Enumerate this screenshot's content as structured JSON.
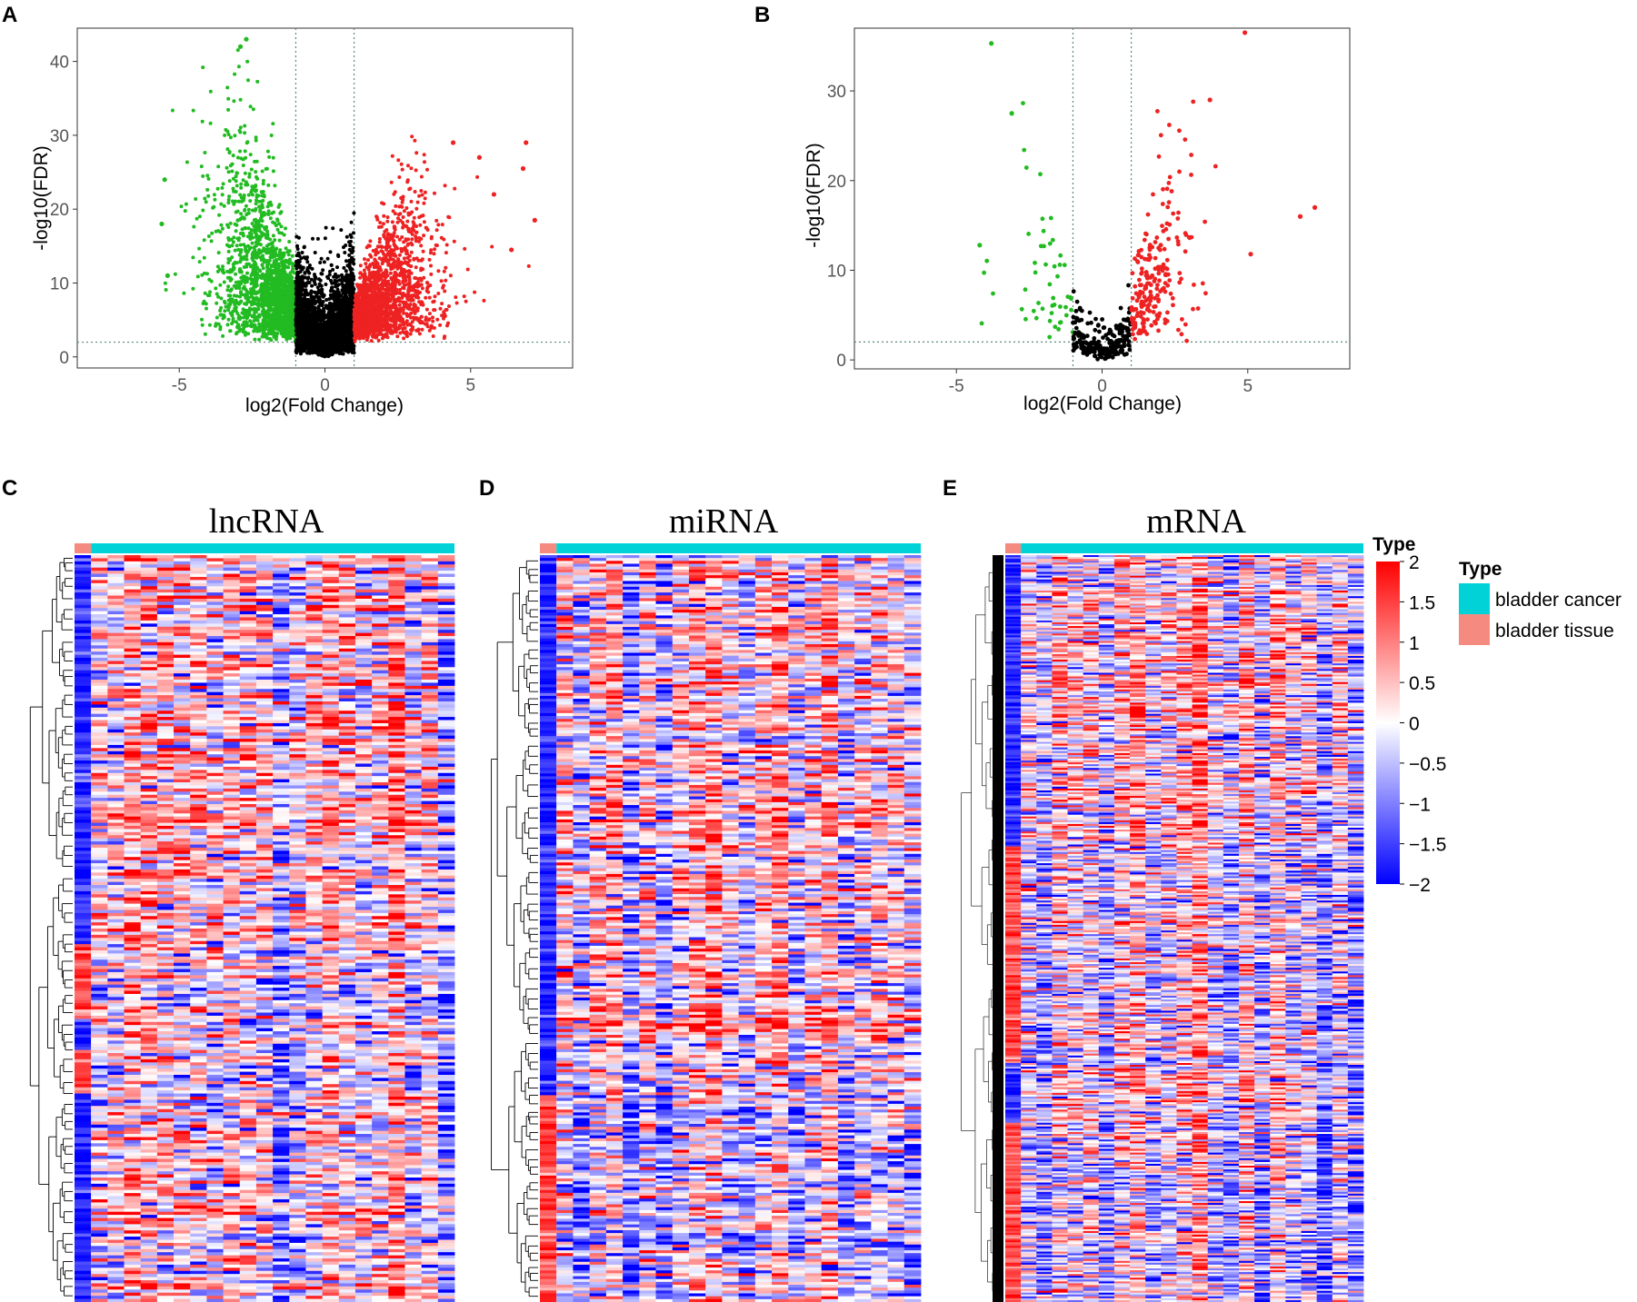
{
  "panels": {
    "A": "A",
    "B": "B",
    "C": "C",
    "D": "D",
    "E": "E"
  },
  "colors": {
    "up": "#ee2222",
    "down": "#22bb22",
    "ns": "#000000",
    "cancer": "#00d2d8",
    "tissue": "#f58a80",
    "heat_high": "#ff0000",
    "heat_mid": "#ffffff",
    "heat_low": "#0000ff"
  },
  "chart_data": [
    {
      "id": "A",
      "type": "scatter",
      "title": "",
      "xlabel": "log2(Fold Change)",
      "ylabel": "-log10(FDR)",
      "xlim": [
        -8.5,
        8.5
      ],
      "ylim": [
        -1.5,
        44.5
      ],
      "xticks": [
        -5,
        0,
        5
      ],
      "yticks": [
        0,
        10,
        20,
        30,
        40
      ],
      "fc_cutoffs": [
        -1,
        1
      ],
      "fdr_cutoff": 2,
      "series": [
        {
          "name": "down",
          "color": "#22bb22",
          "n": 1800,
          "x_range": [
            -5.5,
            -1
          ],
          "y_max": 43
        },
        {
          "name": "ns",
          "color": "#000000",
          "n": 2500,
          "x_range": [
            -1,
            1
          ],
          "y_max": 20
        },
        {
          "name": "up",
          "color": "#ee2222",
          "n": 1800,
          "x_range": [
            1,
            7.2
          ],
          "y_max": 30
        }
      ],
      "highlight_points": [
        {
          "x": -2.7,
          "y": 43
        },
        {
          "x": -2.9,
          "y": 42
        },
        {
          "x": 4.4,
          "y": 29
        },
        {
          "x": 6.9,
          "y": 29
        },
        {
          "x": 5.3,
          "y": 27
        },
        {
          "x": 6.8,
          "y": 25.5
        },
        {
          "x": 5.8,
          "y": 22
        },
        {
          "x": 7.2,
          "y": 18.5
        },
        {
          "x": 6.4,
          "y": 14.5
        },
        {
          "x": -5.5,
          "y": 24
        },
        {
          "x": -5.6,
          "y": 18
        },
        {
          "x": -5.4,
          "y": 11
        }
      ]
    },
    {
      "id": "B",
      "type": "scatter",
      "title": "",
      "xlabel": "log2(Fold Change)",
      "ylabel": "-log10(FDR)",
      "xlim": [
        -8.5,
        8.5
      ],
      "ylim": [
        -1,
        37
      ],
      "xticks": [
        -5,
        0,
        5
      ],
      "yticks": [
        0,
        10,
        20,
        30
      ],
      "fc_cutoffs": [
        -1,
        1
      ],
      "fdr_cutoff": 2,
      "series": [
        {
          "name": "down",
          "color": "#22bb22",
          "n": 50,
          "x_range": [
            -4.2,
            -1
          ],
          "y_max": 35.5
        },
        {
          "name": "ns",
          "color": "#000000",
          "n": 220,
          "x_range": [
            -1,
            1
          ],
          "y_max": 9
        },
        {
          "name": "up",
          "color": "#ee2222",
          "n": 220,
          "x_range": [
            1,
            7.3
          ],
          "y_max": 37
        }
      ],
      "highlight_points": [
        {
          "x": 4.9,
          "y": 36.5
        },
        {
          "x": -3.8,
          "y": 35.3
        },
        {
          "x": 3.7,
          "y": 29
        },
        {
          "x": -3.1,
          "y": 27.5
        },
        {
          "x": 7.3,
          "y": 17
        },
        {
          "x": 6.8,
          "y": 16
        },
        {
          "x": 5.1,
          "y": 11.8
        },
        {
          "x": -4.2,
          "y": 12.8
        }
      ]
    },
    {
      "id": "C",
      "type": "heatmap",
      "title": "lncRNA",
      "groups": [
        {
          "name": "bladder tissue",
          "color": "#f58a80",
          "columns": 1
        },
        {
          "name": "bladder cancer",
          "color": "#00d2d8",
          "columns": 22
        }
      ],
      "rows": 240,
      "row_blocks": [
        {
          "from": 0.0,
          "to": 0.52,
          "tissue_state": "low",
          "cancer_bias": 0.25
        },
        {
          "from": 0.52,
          "to": 0.62,
          "tissue_state": "high",
          "cancer_bias": -0.1
        },
        {
          "from": 0.62,
          "to": 0.66,
          "tissue_state": "low",
          "cancer_bias": 0.1
        },
        {
          "from": 0.66,
          "to": 0.72,
          "tissue_state": "high",
          "cancer_bias": -0.2
        },
        {
          "from": 0.72,
          "to": 1.0,
          "tissue_state": "low",
          "cancer_bias": 0.1
        }
      ]
    },
    {
      "id": "D",
      "type": "heatmap",
      "title": "miRNA",
      "groups": [
        {
          "name": "bladder tissue",
          "color": "#f58a80",
          "columns": 1
        },
        {
          "name": "bladder cancer",
          "color": "#00d2d8",
          "columns": 22
        }
      ],
      "rows": 260,
      "row_blocks": [
        {
          "from": 0.0,
          "to": 0.6,
          "tissue_state": "low",
          "cancer_bias": 0.1
        },
        {
          "from": 0.6,
          "to": 0.64,
          "tissue_state": "low",
          "cancer_bias": 0.45
        },
        {
          "from": 0.64,
          "to": 0.72,
          "tissue_state": "low",
          "cancer_bias": 0.0
        },
        {
          "from": 0.72,
          "to": 1.0,
          "tissue_state": "high",
          "cancer_bias": -0.35
        }
      ]
    },
    {
      "id": "E",
      "type": "heatmap",
      "title": "mRNA",
      "groups": [
        {
          "name": "bladder tissue",
          "color": "#f58a80",
          "columns": 1
        },
        {
          "name": "bladder cancer",
          "color": "#00d2d8",
          "columns": 22
        }
      ],
      "rows": 400,
      "row_blocks": [
        {
          "from": 0.0,
          "to": 0.21,
          "tissue_state": "low",
          "cancer_bias": 0.2
        },
        {
          "from": 0.21,
          "to": 0.39,
          "tissue_state": "low",
          "cancer_bias": 0.05
        },
        {
          "from": 0.39,
          "to": 0.68,
          "tissue_state": "high",
          "cancer_bias": -0.15
        },
        {
          "from": 0.68,
          "to": 0.76,
          "tissue_state": "low",
          "cancer_bias": 0.1
        },
        {
          "from": 0.76,
          "to": 1.0,
          "tissue_state": "high",
          "cancer_bias": -0.3
        }
      ]
    }
  ],
  "legend": {
    "scale_title": "Type",
    "scale_values": [
      "2",
      "1.5",
      "1",
      "0.5",
      "0",
      "−0.5",
      "−1",
      "−1.5",
      "−2"
    ],
    "scale_range": [
      -2,
      2
    ],
    "type_title": "Type",
    "type_items": [
      {
        "label": "bladder cancer",
        "color": "#00d2d8"
      },
      {
        "label": "bladder tissue",
        "color": "#f58a80"
      }
    ]
  }
}
